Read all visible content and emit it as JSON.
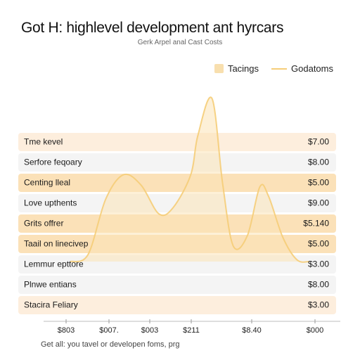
{
  "title": "Got H: highlevel development ant hyrcars",
  "subtitle": "Gerk Arpel anal Cast Costs",
  "legend": [
    {
      "label": "Tacings",
      "kind": "area"
    },
    {
      "label": "Godatoms",
      "kind": "line"
    }
  ],
  "footnote": "Get all: you tavel or developen foms, prg",
  "colors": {
    "area_fill": "#fbe3b6",
    "line": "#f5cd78",
    "band_strong": "#fbe1b8",
    "band_medium": "#fdeedd",
    "band_light": "#f4f4f4"
  },
  "chart_data": {
    "type": "area",
    "title": "Got H: highlevel development ant hyrcars",
    "subtitle": "Gerk Arpel anal Cast Costs",
    "rows": [
      {
        "label": "Tme kevel",
        "value": "$7.00",
        "shade": "medium"
      },
      {
        "label": "Serfore feqoary",
        "value": "$8.00",
        "shade": "light"
      },
      {
        "label": "Centing lleal",
        "value": "$5.00",
        "shade": "strong"
      },
      {
        "label": "Love upthents",
        "value": "$9.00",
        "shade": "light"
      },
      {
        "label": "Grits offrer",
        "value": "$5.140",
        "shade": "strong"
      },
      {
        "label": "Taail on linecivep",
        "value": "$5.00",
        "shade": "strong"
      },
      {
        "label": "Lemmur epttore",
        "value": "$3.00",
        "shade": "light"
      },
      {
        "label": "Plnwe entians",
        "value": "$8.00",
        "shade": "light"
      },
      {
        "label": "Stacira Feliary",
        "value": "$3.00",
        "shade": "medium"
      }
    ],
    "x_ticks": [
      "$803",
      "$007.",
      "$003",
      "$211",
      "$8.40",
      "$000"
    ],
    "series": [
      {
        "name": "Tacings",
        "style": "area",
        "points": [
          {
            "x": 0.0,
            "y": 0.0
          },
          {
            "x": 0.1,
            "y": 0.08
          },
          {
            "x": 0.2,
            "y": 0.72
          },
          {
            "x": 0.3,
            "y": 1.0
          },
          {
            "x": 0.4,
            "y": 0.88
          },
          {
            "x": 0.5,
            "y": 0.55
          },
          {
            "x": 0.58,
            "y": 0.62
          },
          {
            "x": 0.68,
            "y": 1.0
          },
          {
            "x": 0.72,
            "y": 1.45
          },
          {
            "x": 0.8,
            "y": 1.88
          },
          {
            "x": 0.86,
            "y": 0.9
          },
          {
            "x": 0.92,
            "y": 0.18
          },
          {
            "x": 1.0,
            "y": 0.3
          },
          {
            "x": 1.07,
            "y": 0.86
          },
          {
            "x": 1.12,
            "y": 0.75
          },
          {
            "x": 1.2,
            "y": 0.28
          },
          {
            "x": 1.28,
            "y": 0.02
          },
          {
            "x": 1.35,
            "y": 0.0
          }
        ]
      }
    ],
    "grid": false,
    "legend_position": "top-right"
  }
}
